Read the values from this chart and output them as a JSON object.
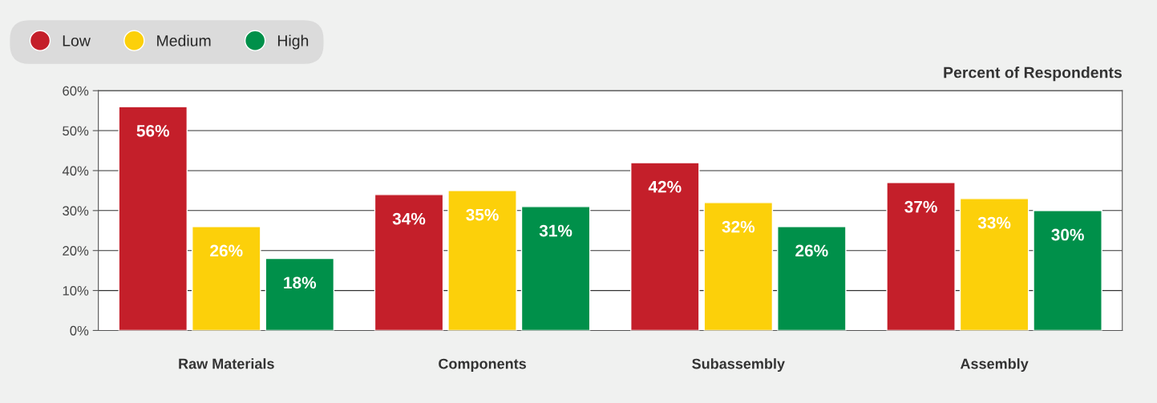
{
  "chart_data": {
    "type": "bar",
    "ylabel": "Percent of Respondents",
    "categories": [
      "Raw Materials",
      "Components",
      "Subassembly",
      "Assembly"
    ],
    "series": [
      {
        "name": "Low",
        "color": "#c41f2a",
        "values": [
          56,
          34,
          42,
          37
        ],
        "value_labels": [
          "56%",
          "34%",
          "42%",
          "37%"
        ]
      },
      {
        "name": "Medium",
        "color": "#fcd00a",
        "values": [
          26,
          35,
          32,
          33
        ],
        "value_labels": [
          "26%",
          "35%",
          "32%",
          "33%"
        ]
      },
      {
        "name": "High",
        "color": "#00904a",
        "values": [
          18,
          31,
          26,
          30
        ],
        "value_labels": [
          "18%",
          "31%",
          "26%",
          "30%"
        ]
      }
    ],
    "ylim": [
      0,
      60
    ],
    "yticks": [
      {
        "value": 0,
        "label": "0%"
      },
      {
        "value": 10,
        "label": "10%"
      },
      {
        "value": 20,
        "label": "20%"
      },
      {
        "value": 30,
        "label": "30%"
      },
      {
        "value": 40,
        "label": "40%"
      },
      {
        "value": 50,
        "label": "50%"
      },
      {
        "value": 60,
        "label": "60%"
      }
    ],
    "grid": "y",
    "legend": "top left"
  }
}
